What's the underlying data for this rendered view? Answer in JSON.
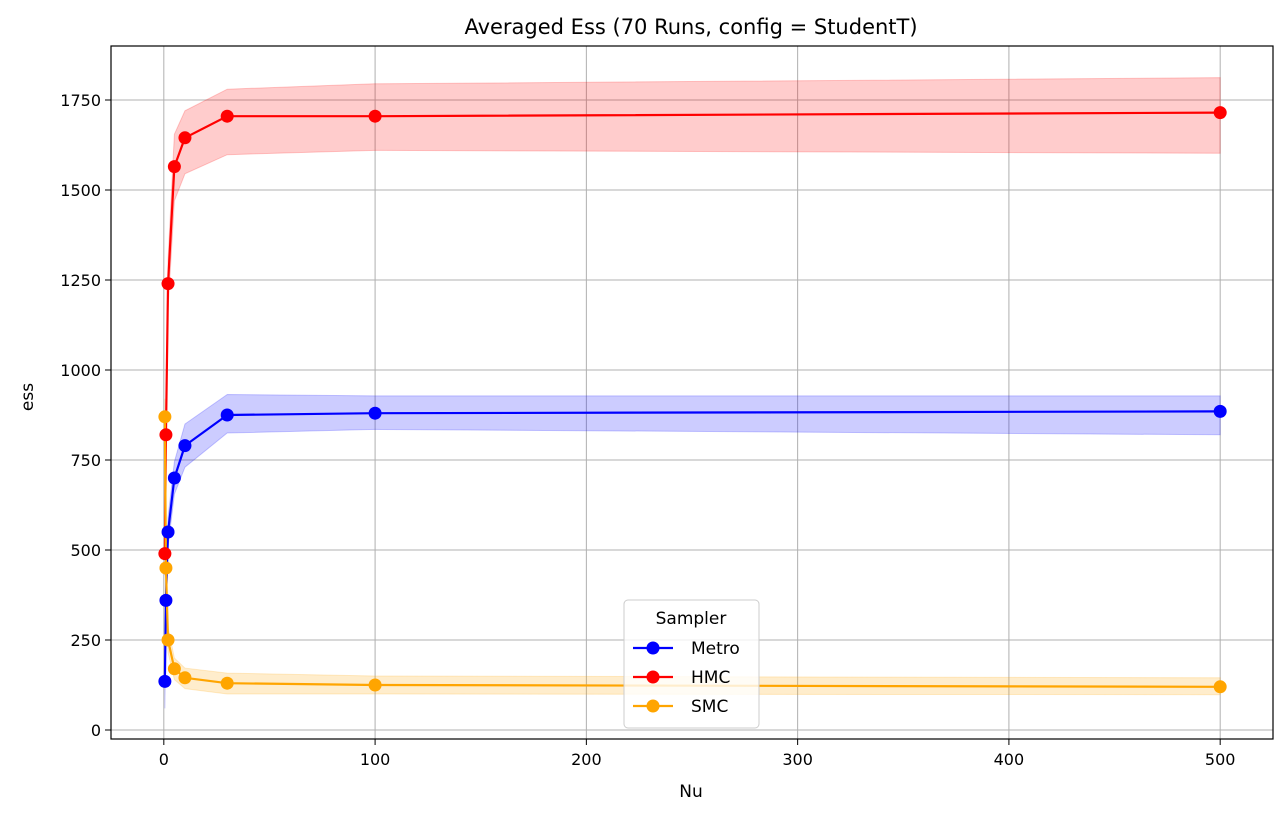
{
  "chart_data": {
    "type": "line",
    "title": "Averaged Ess (70 Runs, config = StudentT)",
    "xlabel": "Nu",
    "ylabel": "ess",
    "xlim": [
      -25,
      525
    ],
    "ylim": [
      -25,
      1900
    ],
    "xticks": [
      0,
      100,
      200,
      300,
      400,
      500
    ],
    "yticks": [
      0,
      250,
      500,
      750,
      1000,
      1250,
      1500,
      1750
    ],
    "grid": true,
    "legend": {
      "title": "Sampler",
      "placement": "lower-center"
    },
    "series": [
      {
        "name": "Metro",
        "color": "#0000ff",
        "x": [
          0.5,
          1,
          2,
          5,
          10,
          30,
          100,
          500
        ],
        "y": [
          135,
          360,
          550,
          700,
          790,
          875,
          880,
          885
        ],
        "lower": [
          60,
          300,
          510,
          655,
          730,
          825,
          835,
          820
        ],
        "upper": [
          200,
          420,
          590,
          745,
          850,
          932,
          928,
          928
        ]
      },
      {
        "name": "HMC",
        "color": "#ff0000",
        "x": [
          0.5,
          1,
          2,
          5,
          10,
          30,
          100,
          500
        ],
        "y": [
          490,
          820,
          1240,
          1565,
          1645,
          1705,
          1705,
          1715
        ],
        "lower": [
          430,
          760,
          1170,
          1470,
          1545,
          1598,
          1610,
          1602
        ],
        "upper": [
          555,
          880,
          1305,
          1655,
          1720,
          1780,
          1795,
          1812
        ]
      },
      {
        "name": "SMC",
        "color": "#ffa500",
        "x": [
          0.5,
          1,
          2,
          5,
          10,
          30,
          100,
          500
        ],
        "y": [
          870,
          450,
          250,
          170,
          145,
          130,
          125,
          120
        ],
        "lower": [
          820,
          400,
          215,
          140,
          115,
          100,
          100,
          98
        ],
        "upper": [
          920,
          495,
          285,
          200,
          172,
          158,
          150,
          145
        ]
      }
    ]
  }
}
